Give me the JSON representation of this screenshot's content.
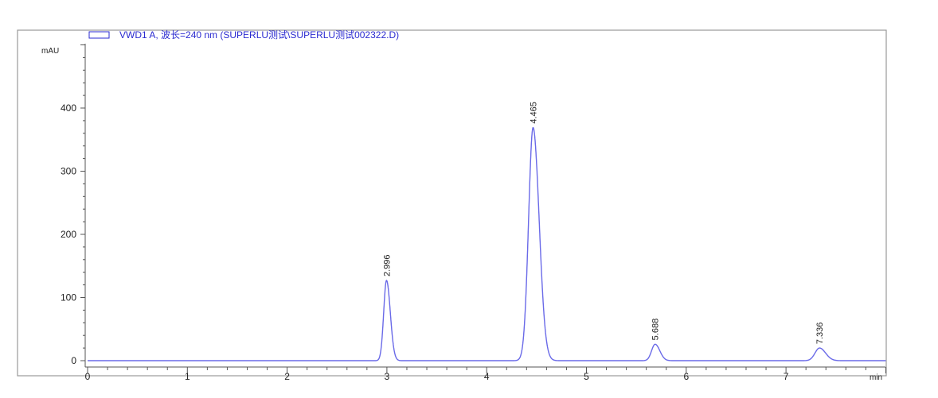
{
  "chart_data": {
    "type": "line",
    "legend": {
      "label": "VWD1 A, 波长=240 nm (SUPERLU测试\\SUPERLU测试002322.D)",
      "placement": "top-left"
    },
    "xlabel": "min",
    "ylabel": "mAU",
    "xlim": [
      0,
      8.0
    ],
    "ylim": [
      -5,
      520
    ],
    "x_ticks": [
      0,
      1,
      2,
      3,
      4,
      5,
      6,
      7
    ],
    "y_ticks": [
      0,
      100,
      200,
      300,
      400
    ],
    "grid": false,
    "line_color": "#6a6ae8",
    "peaks": [
      {
        "rt": 2.996,
        "label": "2.996",
        "height": 127,
        "sigma": 0.028
      },
      {
        "rt": 4.465,
        "label": "4.465",
        "height": 369,
        "sigma": 0.045
      },
      {
        "rt": 5.688,
        "label": "5.688",
        "height": 26,
        "sigma": 0.035
      },
      {
        "rt": 7.336,
        "label": "7.336",
        "height": 20,
        "sigma": 0.045
      }
    ]
  }
}
